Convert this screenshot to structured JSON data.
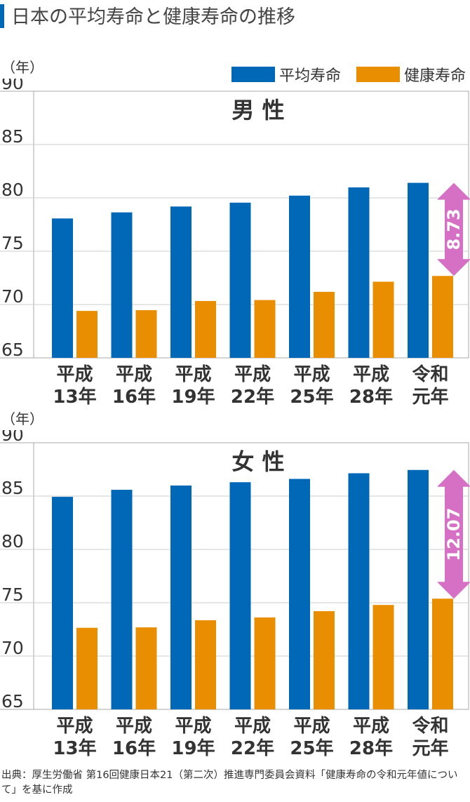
{
  "title": "日本の平均寿命と健康寿命の推移",
  "legend": [
    {
      "name": "平均寿命",
      "color": "#0068b7"
    },
    {
      "name": "健康寿命",
      "color": "#e88e00"
    }
  ],
  "colors": {
    "arrow": "#d670c4",
    "axis": "#aaaaaa",
    "grid": "#cccccc"
  },
  "source": "出典：厚生労働省 第16回健康日本21（第二次）推進専門委員会資料「健康寿命の令和元年値について」を基に作成",
  "chart_data": [
    {
      "type": "bar",
      "title": "男 性",
      "ylabel": "（年）",
      "ylim": [
        65,
        90
      ],
      "yticks": [
        "90",
        "85",
        "80",
        "75",
        "70",
        "65"
      ],
      "categories": [
        [
          "平成",
          "13年"
        ],
        [
          "平成",
          "16年"
        ],
        [
          "平成",
          "19年"
        ],
        [
          "平成",
          "22年"
        ],
        [
          "平成",
          "25年"
        ],
        [
          "平成",
          "28年"
        ],
        [
          "令和",
          "元年"
        ]
      ],
      "series": [
        {
          "name": "平均寿命",
          "values": [
            78.07,
            78.64,
            79.19,
            79.55,
            80.21,
            80.98,
            81.41
          ]
        },
        {
          "name": "健康寿命",
          "values": [
            69.4,
            69.47,
            70.33,
            70.42,
            71.19,
            72.14,
            72.68
          ]
        }
      ],
      "annotation": {
        "label": "8.73",
        "category_index": 6
      }
    },
    {
      "type": "bar",
      "title": "女 性",
      "ylabel": "（年）",
      "ylim": [
        65,
        90
      ],
      "yticks": [
        "90",
        "85",
        "80",
        "75",
        "70",
        "65"
      ],
      "categories": [
        [
          "平成",
          "13年"
        ],
        [
          "平成",
          "16年"
        ],
        [
          "平成",
          "19年"
        ],
        [
          "平成",
          "22年"
        ],
        [
          "平成",
          "25年"
        ],
        [
          "平成",
          "28年"
        ],
        [
          "令和",
          "元年"
        ]
      ],
      "series": [
        {
          "name": "平均寿命",
          "values": [
            84.93,
            85.59,
            85.99,
            86.3,
            86.61,
            87.14,
            87.45
          ]
        },
        {
          "name": "健康寿命",
          "values": [
            72.65,
            72.69,
            73.36,
            73.62,
            74.21,
            74.79,
            75.38
          ]
        }
      ],
      "annotation": {
        "label": "12.07",
        "category_index": 6
      }
    }
  ]
}
